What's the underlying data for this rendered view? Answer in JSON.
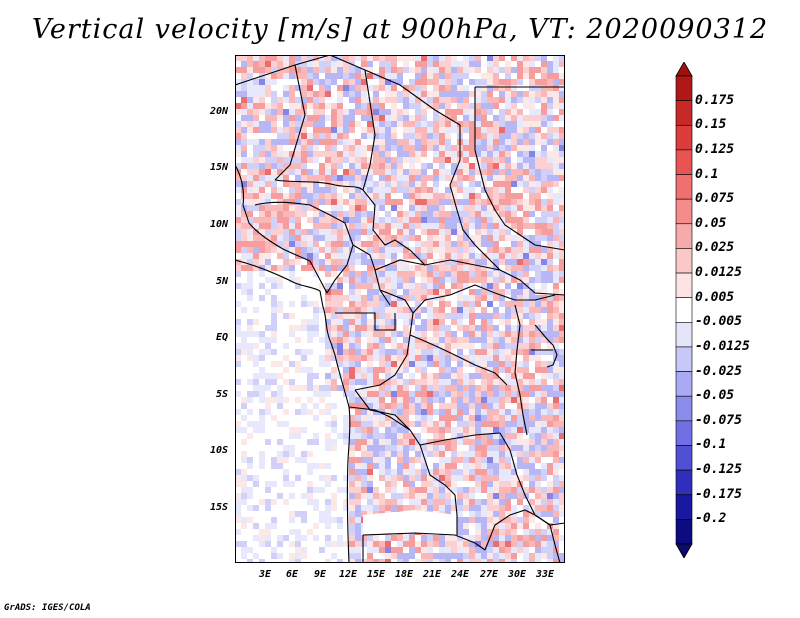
{
  "title": "Vertical velocity [m/s] at 900hPa, VT: 2020090312",
  "credit": "GrADS: IGES/COLA",
  "lat_labels": [
    "20N",
    "15N",
    "10N",
    "5N",
    "EQ",
    "5S",
    "10S",
    "15S"
  ],
  "lon_labels": [
    "3E",
    "6E",
    "9E",
    "12E",
    "15E",
    "18E",
    "21E",
    "24E",
    "27E",
    "30E",
    "33E"
  ],
  "colorbar": {
    "labels": [
      "0.175",
      "0.15",
      "0.125",
      "0.1",
      "0.075",
      "0.05",
      "0.025",
      "0.0125",
      "0.005",
      "-0.005",
      "-0.0125",
      "-0.025",
      "-0.05",
      "-0.075",
      "-0.1",
      "-0.125",
      "-0.175",
      "-0.2"
    ],
    "colors": [
      "#b01818",
      "#c82828",
      "#dc3c3c",
      "#e85454",
      "#f07070",
      "#f48c8c",
      "#f8aaaa",
      "#fbc8c8",
      "#fde4e4",
      "#ffffff",
      "#e4e4fb",
      "#c8c8f8",
      "#aaaaf4",
      "#8c8cec",
      "#7070e4",
      "#5050d4",
      "#3030bc",
      "#1818a0",
      "#0c0c80"
    ],
    "top_color": "#a01010",
    "bottom_color": "#0a0a70"
  },
  "map_colors": {
    "positive": "#e05050",
    "negative": "#5050d0"
  }
}
